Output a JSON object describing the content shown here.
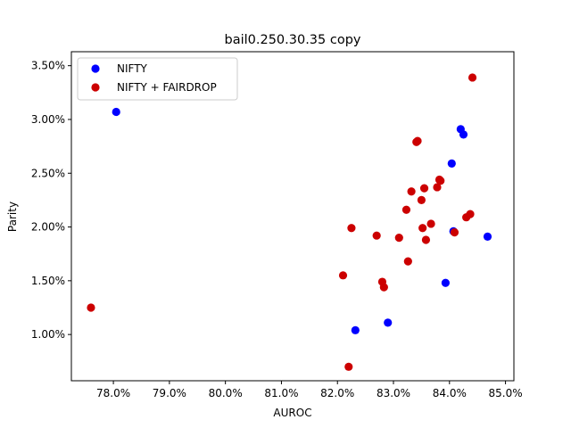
{
  "chart_data": {
    "type": "scatter",
    "title": "bail0.250.30.35 copy",
    "xlabel": "AUROC",
    "ylabel": "Parity",
    "xlim": [
      0.7725,
      0.8515
    ],
    "ylim": [
      0.0057,
      0.0363
    ],
    "xticks": [
      0.78,
      0.79,
      0.8,
      0.81,
      0.82,
      0.83,
      0.84,
      0.85
    ],
    "xtick_labels": [
      "78.0%",
      "79.0%",
      "80.0%",
      "81.0%",
      "82.0%",
      "83.0%",
      "84.0%",
      "85.0%"
    ],
    "yticks": [
      0.01,
      0.015,
      0.02,
      0.025,
      0.03,
      0.035
    ],
    "ytick_labels": [
      "1.00%",
      "1.50%",
      "2.00%",
      "2.50%",
      "3.00%",
      "3.50%"
    ],
    "grid": false,
    "legend_position": "top-left",
    "series": [
      {
        "name": "NIFTY",
        "color": "#0000ff",
        "points": [
          {
            "x": 0.7805,
            "y": 0.0307
          },
          {
            "x": 0.8232,
            "y": 0.0104
          },
          {
            "x": 0.829,
            "y": 0.0111
          },
          {
            "x": 0.8393,
            "y": 0.0148
          },
          {
            "x": 0.8404,
            "y": 0.0259
          },
          {
            "x": 0.8407,
            "y": 0.0196
          },
          {
            "x": 0.842,
            "y": 0.0291
          },
          {
            "x": 0.8425,
            "y": 0.0286
          },
          {
            "x": 0.8468,
            "y": 0.0191
          }
        ]
      },
      {
        "name": "NIFTY + FAIRDROP",
        "color": "#cc0000",
        "points": [
          {
            "x": 0.776,
            "y": 0.0125
          },
          {
            "x": 0.821,
            "y": 0.0155
          },
          {
            "x": 0.822,
            "y": 0.007
          },
          {
            "x": 0.8225,
            "y": 0.0199
          },
          {
            "x": 0.827,
            "y": 0.0192
          },
          {
            "x": 0.828,
            "y": 0.0149
          },
          {
            "x": 0.8283,
            "y": 0.0144
          },
          {
            "x": 0.831,
            "y": 0.019
          },
          {
            "x": 0.8323,
            "y": 0.0216
          },
          {
            "x": 0.8326,
            "y": 0.0168
          },
          {
            "x": 0.8332,
            "y": 0.0233
          },
          {
            "x": 0.8341,
            "y": 0.0279
          },
          {
            "x": 0.8343,
            "y": 0.028
          },
          {
            "x": 0.835,
            "y": 0.0225
          },
          {
            "x": 0.8352,
            "y": 0.0199
          },
          {
            "x": 0.8355,
            "y": 0.0236
          },
          {
            "x": 0.8358,
            "y": 0.0188
          },
          {
            "x": 0.8367,
            "y": 0.0203
          },
          {
            "x": 0.8378,
            "y": 0.0237
          },
          {
            "x": 0.8382,
            "y": 0.0244
          },
          {
            "x": 0.8384,
            "y": 0.0243
          },
          {
            "x": 0.8409,
            "y": 0.0195
          },
          {
            "x": 0.843,
            "y": 0.0209
          },
          {
            "x": 0.8437,
            "y": 0.0212
          },
          {
            "x": 0.8441,
            "y": 0.0339
          }
        ]
      }
    ]
  }
}
